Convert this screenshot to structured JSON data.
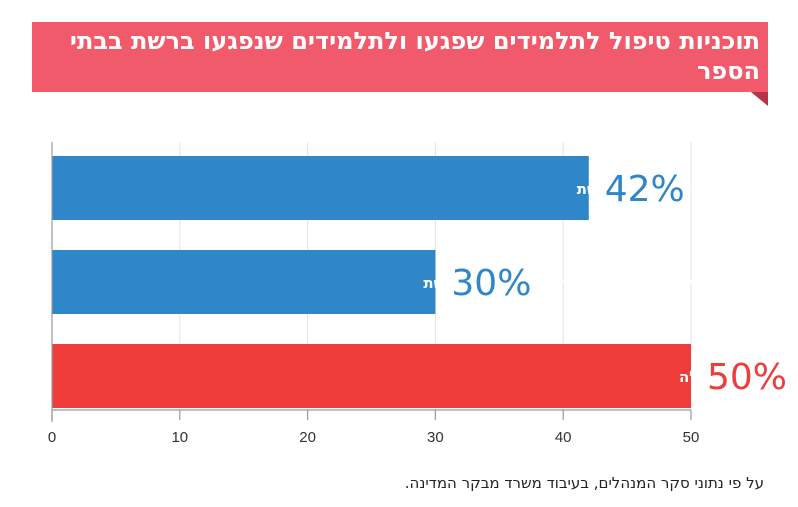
{
  "header": {
    "title": "תוכניות טיפול לתלמידים שפגעו ולתלמידים שנפגעו ברשת בבתי הספר"
  },
  "footnote": "על פי נתוני סקר המנהלים, בעיבוד משרד מבקר המדינה.",
  "colors": {
    "banner": "#f05a6b",
    "blue": "#2f86c9",
    "red": "#ee3d3a",
    "blue_text": "#2f86c9",
    "red_text": "#ee3d3a"
  },
  "chart_data": {
    "type": "bar",
    "orientation": "horizontal",
    "title": "תוכניות טיפול לתלמידים שפגעו ולתלמידים שנפגעו ברשת בבתי הספר",
    "categories": [
      "יש לבית הספר תוכניות המיועדות לטיפול בתלמידים שנפגעו ברשת",
      "יש לבית הספר תוכניות המיועדות לטיפול בתלמידים שפגעו ברשת",
      "אין לבית הספר תוכניות טיפול מספקות בתחומים אלה"
    ],
    "values": [
      42,
      30,
      50
    ],
    "value_labels": [
      "42%",
      "30%",
      "50%"
    ],
    "bar_colors": [
      "#2f86c9",
      "#2f86c9",
      "#ee3d3a"
    ],
    "xlim": [
      0,
      50
    ],
    "xticks": [
      0,
      10,
      20,
      30,
      40,
      50
    ],
    "grid": true
  }
}
